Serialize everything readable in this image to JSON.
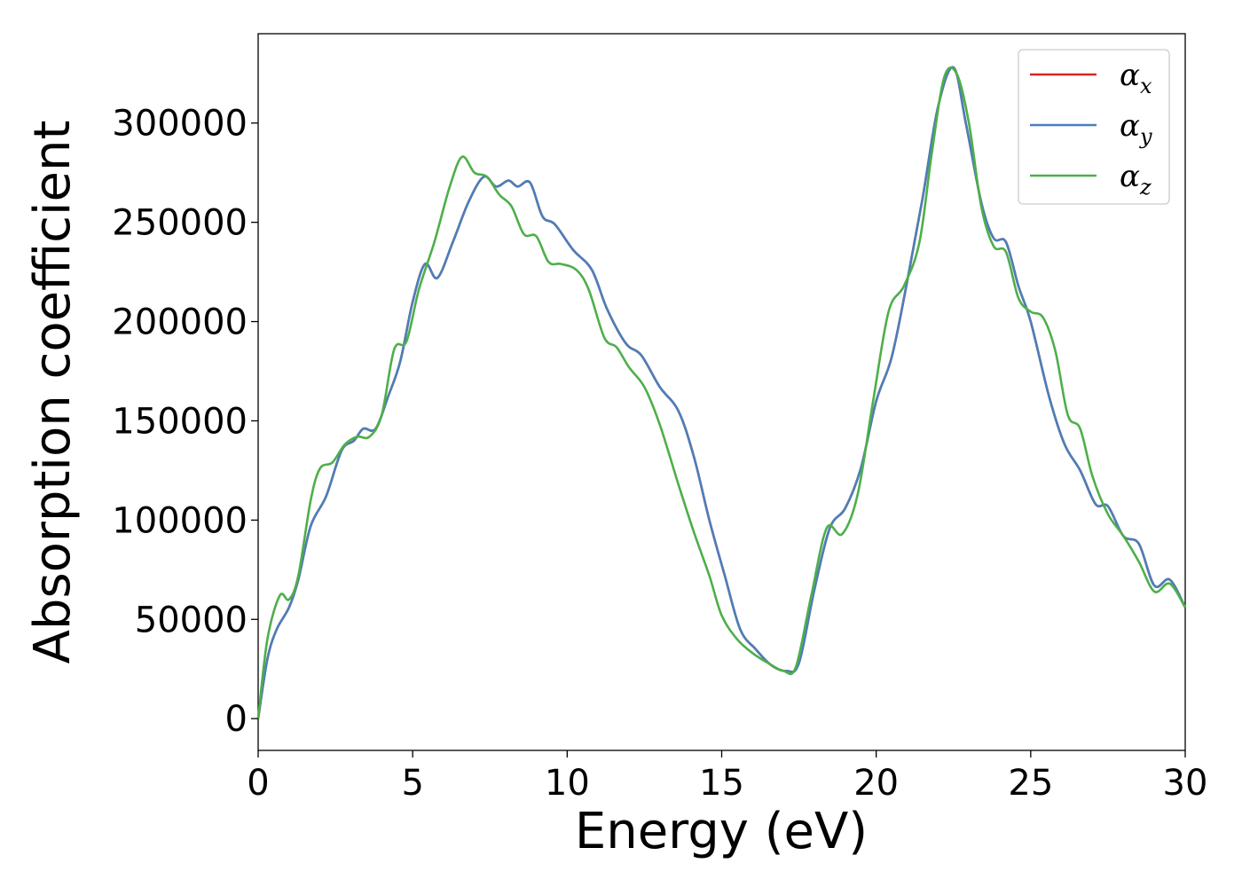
{
  "chart_data": {
    "type": "line",
    "title": "",
    "xlabel": "Energy (eV)",
    "ylabel": "Absorption coefficient",
    "xlim": [
      0,
      30
    ],
    "ylim": [
      -16000,
      345000
    ],
    "xticks": [
      0,
      5,
      10,
      15,
      20,
      25,
      30
    ],
    "yticks": [
      0,
      50000,
      100000,
      150000,
      200000,
      250000,
      300000
    ],
    "xtick_labels": [
      "0",
      "5",
      "10",
      "15",
      "20",
      "25",
      "30"
    ],
    "ytick_labels": [
      "0",
      "50000",
      "100000",
      "150000",
      "200000",
      "250000",
      "300000"
    ],
    "grid": false,
    "legend_position": "top-right",
    "series": [
      {
        "name": "α_x",
        "legend_base": "α",
        "legend_sub": "x",
        "color": "#d62728",
        "points": [
          [
            0,
            0
          ],
          [
            0.3,
            30000
          ],
          [
            0.6,
            45000
          ],
          [
            1.0,
            56000
          ],
          [
            1.3,
            70000
          ],
          [
            1.7,
            97000
          ],
          [
            2.2,
            112000
          ],
          [
            2.7,
            135000
          ],
          [
            3.1,
            140000
          ],
          [
            3.4,
            146000
          ],
          [
            3.8,
            146000
          ],
          [
            4.2,
            162000
          ],
          [
            4.6,
            180000
          ],
          [
            5.0,
            210000
          ],
          [
            5.4,
            229000
          ],
          [
            5.8,
            222000
          ],
          [
            6.3,
            240000
          ],
          [
            6.8,
            260000
          ],
          [
            7.3,
            273000
          ],
          [
            7.7,
            268000
          ],
          [
            8.1,
            271000
          ],
          [
            8.4,
            268000
          ],
          [
            8.8,
            270000
          ],
          [
            9.2,
            253000
          ],
          [
            9.6,
            249000
          ],
          [
            10.2,
            236000
          ],
          [
            10.8,
            226000
          ],
          [
            11.3,
            206000
          ],
          [
            11.9,
            189000
          ],
          [
            12.4,
            183000
          ],
          [
            13.0,
            167000
          ],
          [
            13.6,
            155000
          ],
          [
            14.1,
            132000
          ],
          [
            14.6,
            100000
          ],
          [
            15.1,
            72000
          ],
          [
            15.6,
            45000
          ],
          [
            16.1,
            35000
          ],
          [
            16.6,
            27000
          ],
          [
            17.1,
            24000
          ],
          [
            17.5,
            28000
          ],
          [
            18.0,
            65000
          ],
          [
            18.5,
            96000
          ],
          [
            19.0,
            106000
          ],
          [
            19.5,
            126000
          ],
          [
            20.0,
            160000
          ],
          [
            20.5,
            182000
          ],
          [
            21.0,
            220000
          ],
          [
            21.5,
            262000
          ],
          [
            22.0,
            308000
          ],
          [
            22.5,
            328000
          ],
          [
            22.9,
            300000
          ],
          [
            23.4,
            260000
          ],
          [
            23.8,
            242000
          ],
          [
            24.2,
            240000
          ],
          [
            24.6,
            218000
          ],
          [
            25.0,
            200000
          ],
          [
            25.6,
            162000
          ],
          [
            26.1,
            138000
          ],
          [
            26.6,
            125000
          ],
          [
            27.1,
            108000
          ],
          [
            27.5,
            107000
          ],
          [
            28.0,
            92000
          ],
          [
            28.5,
            88000
          ],
          [
            29.0,
            67000
          ],
          [
            29.5,
            70000
          ],
          [
            30.0,
            56000
          ]
        ]
      },
      {
        "name": "α_y",
        "legend_base": "α",
        "legend_sub": "y",
        "color": "#4a7fba",
        "points": [
          [
            0,
            0
          ],
          [
            0.3,
            30000
          ],
          [
            0.6,
            45000
          ],
          [
            1.0,
            56000
          ],
          [
            1.3,
            70000
          ],
          [
            1.7,
            97000
          ],
          [
            2.2,
            112000
          ],
          [
            2.7,
            135000
          ],
          [
            3.1,
            140000
          ],
          [
            3.4,
            146000
          ],
          [
            3.8,
            146000
          ],
          [
            4.2,
            162000
          ],
          [
            4.6,
            180000
          ],
          [
            5.0,
            210000
          ],
          [
            5.4,
            229000
          ],
          [
            5.8,
            222000
          ],
          [
            6.3,
            240000
          ],
          [
            6.8,
            260000
          ],
          [
            7.3,
            273000
          ],
          [
            7.7,
            268000
          ],
          [
            8.1,
            271000
          ],
          [
            8.4,
            268000
          ],
          [
            8.8,
            270000
          ],
          [
            9.2,
            253000
          ],
          [
            9.6,
            249000
          ],
          [
            10.2,
            236000
          ],
          [
            10.8,
            226000
          ],
          [
            11.3,
            206000
          ],
          [
            11.9,
            189000
          ],
          [
            12.4,
            183000
          ],
          [
            13.0,
            167000
          ],
          [
            13.6,
            155000
          ],
          [
            14.1,
            132000
          ],
          [
            14.6,
            100000
          ],
          [
            15.1,
            72000
          ],
          [
            15.6,
            45000
          ],
          [
            16.1,
            35000
          ],
          [
            16.6,
            27000
          ],
          [
            17.1,
            24000
          ],
          [
            17.5,
            28000
          ],
          [
            18.0,
            65000
          ],
          [
            18.5,
            96000
          ],
          [
            19.0,
            106000
          ],
          [
            19.5,
            126000
          ],
          [
            20.0,
            160000
          ],
          [
            20.5,
            182000
          ],
          [
            21.0,
            220000
          ],
          [
            21.5,
            262000
          ],
          [
            22.0,
            308000
          ],
          [
            22.5,
            328000
          ],
          [
            22.9,
            300000
          ],
          [
            23.4,
            260000
          ],
          [
            23.8,
            242000
          ],
          [
            24.2,
            240000
          ],
          [
            24.6,
            218000
          ],
          [
            25.0,
            200000
          ],
          [
            25.6,
            162000
          ],
          [
            26.1,
            138000
          ],
          [
            26.6,
            125000
          ],
          [
            27.1,
            108000
          ],
          [
            27.5,
            107000
          ],
          [
            28.0,
            92000
          ],
          [
            28.5,
            88000
          ],
          [
            29.0,
            67000
          ],
          [
            29.5,
            70000
          ],
          [
            30.0,
            56000
          ]
        ]
      },
      {
        "name": "α_z",
        "legend_base": "α",
        "legend_sub": "z",
        "color": "#4daf4a",
        "points": [
          [
            0,
            0
          ],
          [
            0.3,
            40000
          ],
          [
            0.7,
            62000
          ],
          [
            1.0,
            60000
          ],
          [
            1.3,
            72000
          ],
          [
            1.7,
            110000
          ],
          [
            2.0,
            126000
          ],
          [
            2.4,
            129000
          ],
          [
            2.8,
            138000
          ],
          [
            3.2,
            142000
          ],
          [
            3.6,
            142000
          ],
          [
            4.0,
            153000
          ],
          [
            4.4,
            186000
          ],
          [
            4.8,
            190000
          ],
          [
            5.2,
            216000
          ],
          [
            5.7,
            240000
          ],
          [
            6.2,
            268000
          ],
          [
            6.6,
            283000
          ],
          [
            7.0,
            275000
          ],
          [
            7.4,
            273000
          ],
          [
            7.8,
            264000
          ],
          [
            8.2,
            258000
          ],
          [
            8.6,
            244000
          ],
          [
            9.0,
            243000
          ],
          [
            9.4,
            230000
          ],
          [
            9.8,
            229000
          ],
          [
            10.3,
            226000
          ],
          [
            10.7,
            216000
          ],
          [
            11.2,
            192000
          ],
          [
            11.6,
            187000
          ],
          [
            12.0,
            177000
          ],
          [
            12.5,
            167000
          ],
          [
            13.0,
            148000
          ],
          [
            13.6,
            118000
          ],
          [
            14.1,
            94000
          ],
          [
            14.6,
            72000
          ],
          [
            15.0,
            52000
          ],
          [
            15.5,
            40000
          ],
          [
            16.0,
            33000
          ],
          [
            16.5,
            28000
          ],
          [
            17.0,
            24000
          ],
          [
            17.4,
            26000
          ],
          [
            17.9,
            62000
          ],
          [
            18.4,
            96000
          ],
          [
            18.9,
            93000
          ],
          [
            19.4,
            113000
          ],
          [
            19.9,
            160000
          ],
          [
            20.4,
            205000
          ],
          [
            20.9,
            218000
          ],
          [
            21.4,
            240000
          ],
          [
            21.8,
            285000
          ],
          [
            22.2,
            323000
          ],
          [
            22.6,
            325000
          ],
          [
            23.0,
            300000
          ],
          [
            23.4,
            258000
          ],
          [
            23.8,
            238000
          ],
          [
            24.2,
            235000
          ],
          [
            24.6,
            212000
          ],
          [
            25.0,
            205000
          ],
          [
            25.4,
            202000
          ],
          [
            25.8,
            185000
          ],
          [
            26.2,
            153000
          ],
          [
            26.6,
            146000
          ],
          [
            27.0,
            122000
          ],
          [
            27.5,
            103000
          ],
          [
            28.0,
            92000
          ],
          [
            28.5,
            79000
          ],
          [
            29.0,
            64000
          ],
          [
            29.5,
            68000
          ],
          [
            30.0,
            56000
          ]
        ]
      }
    ]
  }
}
